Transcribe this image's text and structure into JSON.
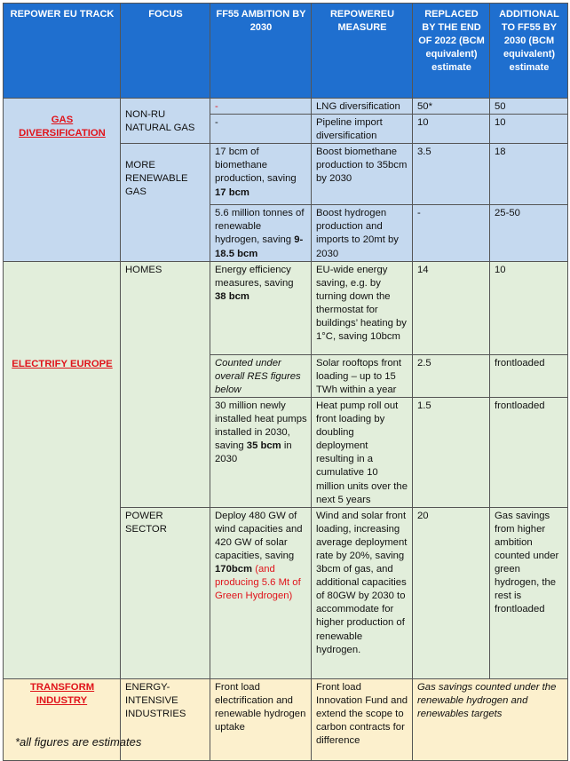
{
  "headers": [
    "REPOWER EU TRACK",
    "FOCUS",
    "FF55 AMBITION BY 2030",
    "REPOWEREU MEASURE",
    "REPLACED BY THE END OF 2022 (BCM equivalent) estimate",
    "ADDITIONAL TO FF55 BY 2030 (BCM equivalent) estimate"
  ],
  "colors": {
    "header": "#1f6fcf",
    "gas": "#c5d9ef",
    "electrify": "#e2eedb",
    "industry": "#fcf0cd",
    "track_text": "#e0141b"
  },
  "gas": {
    "track": "GAS DIVERSIFICATION",
    "focus_nonru": "NON-RU NATURAL GAS",
    "focus_renew": "MORE RENEWABLE GAS",
    "rows": [
      {
        "ambition": "-",
        "measure": "LNG diversification",
        "replaced": "50*",
        "additional": "50"
      },
      {
        "ambition": "-",
        "measure": "Pipeline import diversification",
        "replaced": "10",
        "additional": "10"
      },
      {
        "ambition": "17 bcm of biomethane production, saving ",
        "ambition_bold": "17 bcm",
        "measure": "Boost biomethane production to 35bcm by 2030",
        "replaced": "3.5",
        "additional": "18"
      },
      {
        "ambition": "5.6 million tonnes of renewable hydrogen, saving ",
        "ambition_bold": "9-18.5 bcm",
        "measure": "Boost hydrogen production and imports to 20mt by 2030",
        "replaced": "-",
        "additional": "25-50"
      }
    ]
  },
  "electrify": {
    "track": "ELECTRIFY EUROPE",
    "focus_homes": "HOMES",
    "focus_power": "POWER SECTOR",
    "rows": [
      {
        "ambition": "Energy efficiency measures, saving ",
        "ambition_bold": "38 bcm",
        "measure": "EU-wide energy saving, e.g. by turning down the thermostat for buildings’ heating by 1°C, saving 10bcm",
        "replaced": "14",
        "additional": "10"
      },
      {
        "ambition": "Counted under overall RES figures below",
        "measure": "Solar rooftops front loading – up to 15 TWh within a year",
        "replaced": "2.5",
        "additional": "frontloaded"
      },
      {
        "ambition": "30 million newly installed heat pumps installed  in 2030, saving ",
        "ambition_bold": "35 bcm",
        "ambition_after": " in 2030",
        "measure": "Heat pump roll out front loading by doubling deployment resulting in a cumulative 10 million units  over the next 5  years",
        "replaced": "1.5",
        "additional": "frontloaded"
      },
      {
        "ambition": "Deploy 480 GW of wind capacities and 420 GW of solar capacities, saving ",
        "ambition_bold": "170bcm",
        "ambition_red": " (and producing 5.6 Mt of Green Hydrogen)",
        "measure": "Wind and solar front loading, increasing average deployment rate by 20%, saving 3bcm of gas, and additional capacities of 80GW by 2030 to accommodate for higher production of renewable hydrogen.",
        "replaced": "20",
        "additional": "Gas savings from higher ambition counted under green hydrogen, the rest is frontloaded"
      }
    ]
  },
  "industry": {
    "track": "TRANSFORM INDUSTRY",
    "focus": "ENERGY-INTENSIVE INDUSTRIES",
    "ambition": "Front load electrification and renewable hydrogen uptake",
    "measure": "Front load Innovation Fund and extend the scope to carbon contracts for difference",
    "note": "Gas savings counted under the renewable hydrogen and renewables targets"
  },
  "footnote": "*all figures are estimates"
}
